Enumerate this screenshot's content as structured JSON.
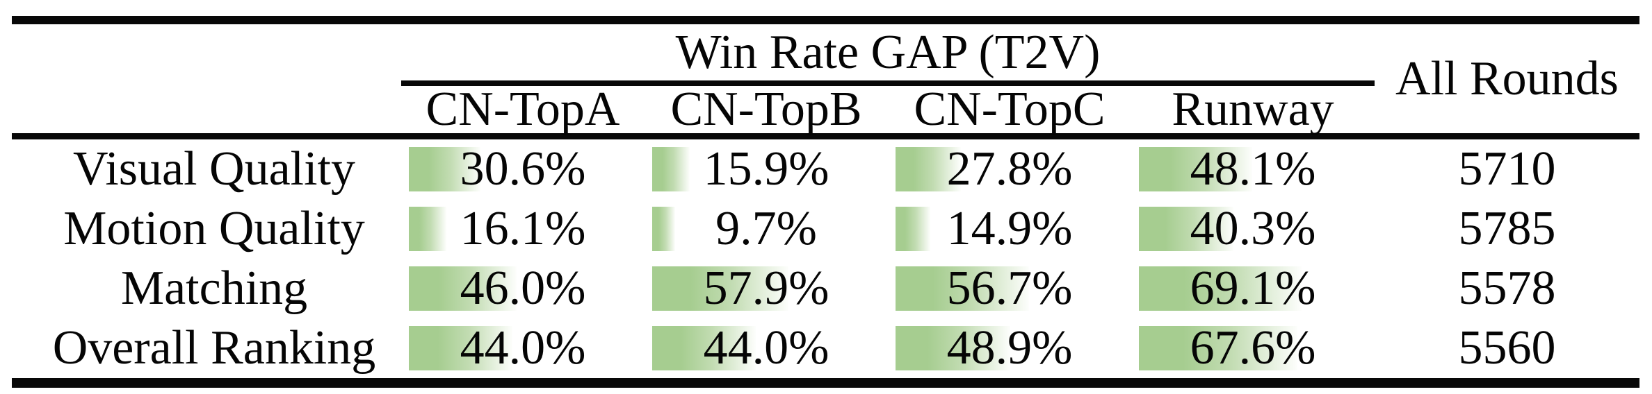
{
  "table": {
    "title": "Win Rate GAP (T2V)",
    "all_rounds_header": "All Rounds",
    "columns": [
      "CN-TopA",
      "CN-TopB",
      "CN-TopC",
      "Runway"
    ],
    "rows": [
      {
        "label": "Visual Quality",
        "cells": [
          {
            "text": "30.6%",
            "value": 30.6
          },
          {
            "text": "15.9%",
            "value": 15.9
          },
          {
            "text": "27.8%",
            "value": 27.8
          },
          {
            "text": "48.1%",
            "value": 48.1
          }
        ],
        "all_rounds": "5710"
      },
      {
        "label": "Motion Quality",
        "cells": [
          {
            "text": "16.1%",
            "value": 16.1
          },
          {
            "text": "9.7%",
            "value": 9.7
          },
          {
            "text": "14.9%",
            "value": 14.9
          },
          {
            "text": "40.3%",
            "value": 40.3
          }
        ],
        "all_rounds": "5785"
      },
      {
        "label": "Matching",
        "cells": [
          {
            "text": "46.0%",
            "value": 46.0
          },
          {
            "text": "57.9%",
            "value": 57.9
          },
          {
            "text": "56.7%",
            "value": 56.7
          },
          {
            "text": "69.1%",
            "value": 69.1
          }
        ],
        "all_rounds": "5578"
      },
      {
        "label": "Overall Ranking",
        "cells": [
          {
            "text": "44.0%",
            "value": 44.0
          },
          {
            "text": "44.0%",
            "value": 44.0
          },
          {
            "text": "48.9%",
            "value": 48.9
          },
          {
            "text": "67.6%",
            "value": 67.6
          }
        ],
        "all_rounds": "5560"
      }
    ],
    "bar_color": "#a6cd90",
    "bar_mid_color": "#c2dcb2",
    "bar_fade_color": "#fdfefc",
    "rule_color": "#080808"
  },
  "chart_data": {
    "type": "table",
    "title": "Win Rate GAP (T2V)",
    "row_header": [
      "Visual Quality",
      "Motion Quality",
      "Matching",
      "Overall Ranking"
    ],
    "columns": [
      "CN-TopA",
      "CN-TopB",
      "CN-TopC",
      "Runway",
      "All Rounds"
    ],
    "series": [
      {
        "name": "CN-TopA",
        "values": [
          30.6,
          16.1,
          46.0,
          44.0
        ],
        "unit": "%"
      },
      {
        "name": "CN-TopB",
        "values": [
          15.9,
          9.7,
          57.9,
          44.0
        ],
        "unit": "%"
      },
      {
        "name": "CN-TopC",
        "values": [
          27.8,
          14.9,
          56.7,
          48.9
        ],
        "unit": "%"
      },
      {
        "name": "Runway",
        "values": [
          48.1,
          40.3,
          69.1,
          67.6
        ],
        "unit": "%"
      },
      {
        "name": "All Rounds",
        "values": [
          5710,
          5785,
          5578,
          5560
        ],
        "unit": "count"
      }
    ],
    "cell_bar_style": "green gradient data bars, length proportional to percentage, fading left-to-right",
    "bar_range": [
      0,
      100
    ]
  }
}
